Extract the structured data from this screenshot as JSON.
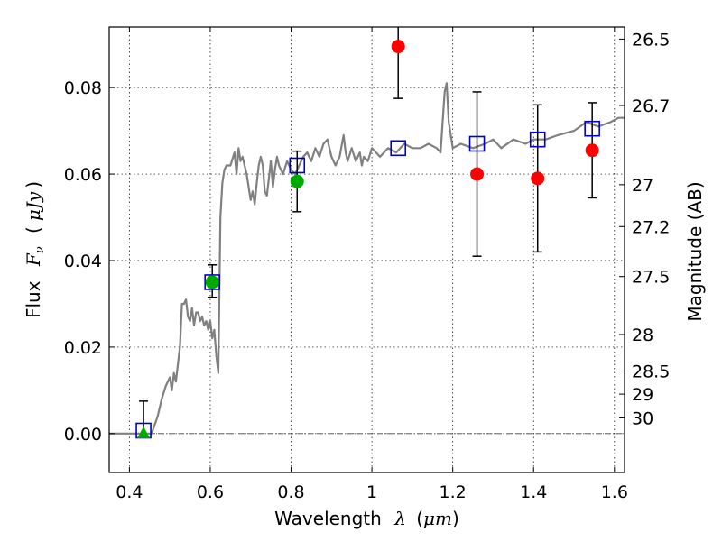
{
  "chart_data": {
    "type": "scatter",
    "xlabel": {
      "text": "Wavelength",
      "symbol": "λ",
      "unit_open": "(",
      "unit": "μm",
      "unit_close": ")"
    },
    "ylabel": {
      "text": "Flux",
      "symbol": "F",
      "subscript": "ν",
      "unit_open": "(",
      "unit": "μJy",
      "unit_close": ")"
    },
    "y2label": "Magnitude (AB)",
    "xlim": [
      0.35,
      1.625
    ],
    "ylim": [
      -0.009,
      0.094
    ],
    "grid": true,
    "xticks": [
      0.4,
      0.6,
      0.8,
      1.0,
      1.2,
      1.4,
      1.6
    ],
    "xtick_labels": [
      "0.4",
      "0.6",
      "0.8",
      "1",
      "1.2",
      "1.4",
      "1.6"
    ],
    "yticks": [
      0.0,
      0.02,
      0.04,
      0.06,
      0.08
    ],
    "ytick_labels": [
      "0.00",
      "0.02",
      "0.04",
      "0.06",
      "0.08"
    ],
    "y2ticks": [
      {
        "mag": 26.5,
        "label": "26.5"
      },
      {
        "mag": 26.7,
        "label": "26.7"
      },
      {
        "mag": 27.0,
        "label": "27"
      },
      {
        "mag": 27.2,
        "label": "27.2"
      },
      {
        "mag": 27.5,
        "label": "27.5"
      },
      {
        "mag": 28.0,
        "label": "28"
      },
      {
        "mag": 28.5,
        "label": "28.5"
      },
      {
        "mag": 29.0,
        "label": "29"
      },
      {
        "mag": 30.0,
        "label": "30"
      }
    ],
    "zero_line": 0.0,
    "series": [
      {
        "kind": "model",
        "color": "#808080",
        "x": [
          0.35,
          0.43,
          0.455,
          0.47,
          0.48,
          0.49,
          0.5,
          0.505,
          0.51,
          0.515,
          0.52,
          0.525,
          0.53,
          0.535,
          0.54,
          0.545,
          0.55,
          0.555,
          0.56,
          0.565,
          0.57,
          0.575,
          0.58,
          0.585,
          0.59,
          0.595,
          0.6,
          0.605,
          0.61,
          0.615,
          0.62,
          0.625,
          0.63,
          0.635,
          0.64,
          0.65,
          0.66,
          0.665,
          0.67,
          0.675,
          0.68,
          0.685,
          0.69,
          0.695,
          0.7,
          0.705,
          0.71,
          0.715,
          0.72,
          0.725,
          0.73,
          0.735,
          0.74,
          0.745,
          0.75,
          0.755,
          0.76,
          0.765,
          0.77,
          0.78,
          0.79,
          0.8,
          0.81,
          0.82,
          0.83,
          0.84,
          0.85,
          0.86,
          0.87,
          0.88,
          0.89,
          0.9,
          0.91,
          0.92,
          0.93,
          0.935,
          0.94,
          0.95,
          0.96,
          0.97,
          0.975,
          0.98,
          0.99,
          1.0,
          1.02,
          1.04,
          1.06,
          1.08,
          1.1,
          1.12,
          1.14,
          1.16,
          1.17,
          1.18,
          1.185,
          1.19,
          1.2,
          1.22,
          1.25,
          1.28,
          1.3,
          1.32,
          1.35,
          1.38,
          1.4,
          1.43,
          1.46,
          1.5,
          1.53,
          1.56,
          1.59,
          1.61,
          1.625
        ],
        "y": [
          0.0,
          0.0,
          0.0,
          0.004,
          0.008,
          0.011,
          0.013,
          0.01,
          0.014,
          0.012,
          0.016,
          0.02,
          0.03,
          0.03,
          0.031,
          0.027,
          0.026,
          0.029,
          0.025,
          0.028,
          0.028,
          0.026,
          0.027,
          0.025,
          0.026,
          0.024,
          0.026,
          0.022,
          0.024,
          0.018,
          0.014,
          0.05,
          0.058,
          0.061,
          0.062,
          0.062,
          0.065,
          0.06,
          0.066,
          0.063,
          0.064,
          0.062,
          0.06,
          0.057,
          0.054,
          0.056,
          0.053,
          0.058,
          0.062,
          0.064,
          0.062,
          0.056,
          0.055,
          0.059,
          0.063,
          0.057,
          0.061,
          0.064,
          0.062,
          0.06,
          0.063,
          0.061,
          0.06,
          0.062,
          0.064,
          0.065,
          0.063,
          0.066,
          0.064,
          0.067,
          0.068,
          0.064,
          0.062,
          0.064,
          0.069,
          0.065,
          0.063,
          0.066,
          0.063,
          0.065,
          0.062,
          0.064,
          0.063,
          0.066,
          0.064,
          0.066,
          0.065,
          0.067,
          0.066,
          0.066,
          0.067,
          0.066,
          0.065,
          0.079,
          0.081,
          0.072,
          0.066,
          0.067,
          0.066,
          0.067,
          0.068,
          0.066,
          0.068,
          0.067,
          0.068,
          0.068,
          0.069,
          0.07,
          0.072,
          0.071,
          0.072,
          0.073,
          0.073
        ]
      },
      {
        "kind": "model_squares",
        "color": "#0000cc",
        "x": [
          0.435,
          0.605,
          0.815,
          1.065,
          1.26,
          1.41,
          1.545
        ],
        "y": [
          0.0007,
          0.035,
          0.062,
          0.066,
          0.067,
          0.068,
          0.0705
        ]
      },
      {
        "kind": "green_points",
        "color": "#00aa00",
        "x": [
          0.435,
          0.605,
          0.815
        ],
        "y": [
          0.0,
          0.035,
          0.0583
        ],
        "yerr_low": [
          0.0,
          0.0035,
          0.007
        ],
        "yerr_high": [
          0.0075,
          0.004,
          0.007
        ],
        "markers": [
          "triangle",
          "circle",
          "circle"
        ]
      },
      {
        "kind": "red_points",
        "color": "#ff0000",
        "x": [
          1.065,
          1.26,
          1.41,
          1.545
        ],
        "y": [
          0.0895,
          0.06,
          0.059,
          0.0655
        ],
        "yerr_low": [
          0.012,
          0.019,
          0.017,
          0.011
        ],
        "yerr_high": [
          0.012,
          0.019,
          0.017,
          0.011
        ]
      }
    ]
  }
}
